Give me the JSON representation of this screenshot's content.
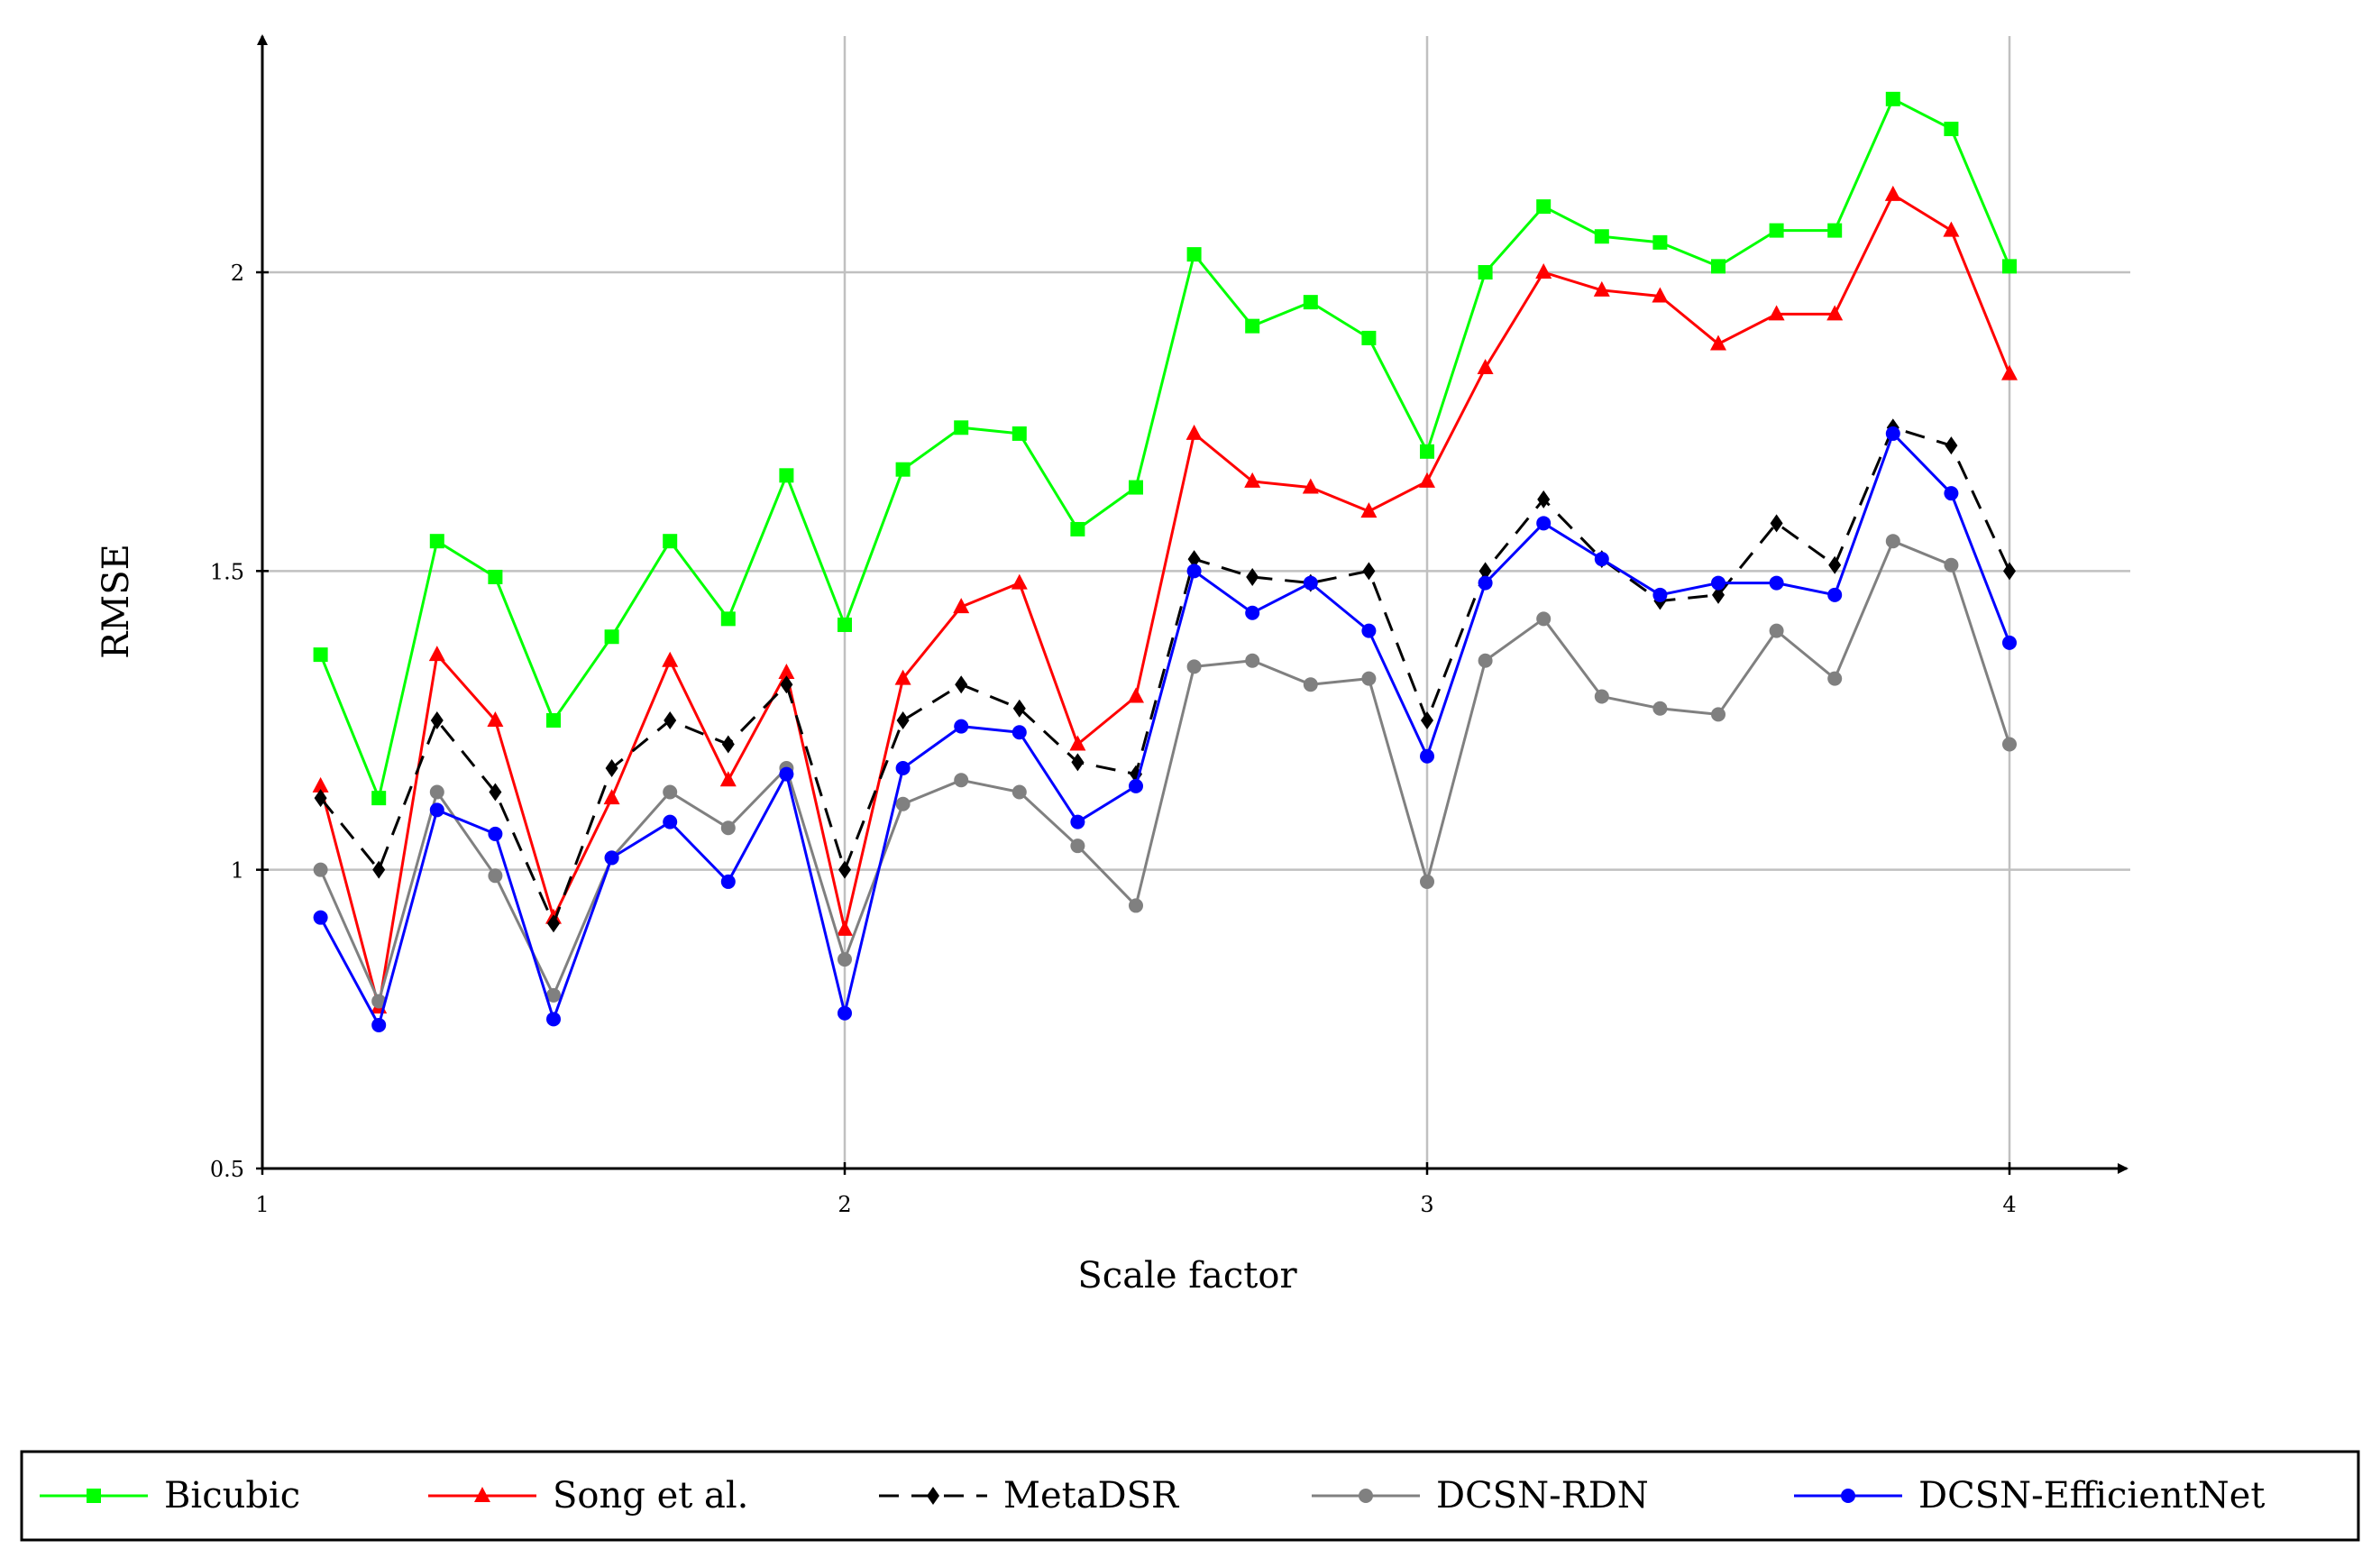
{
  "chart_data": {
    "type": "line",
    "title": "",
    "xlabel": "Scale factor",
    "ylabel": "RMSE",
    "xlim": [
      1,
      4.2
    ],
    "ylim": [
      0.5,
      2.4
    ],
    "xticks": [
      1,
      2,
      3,
      4
    ],
    "yticks": [
      0.5,
      1,
      1.5,
      2
    ],
    "xtick_labels": [
      "1",
      "2",
      "3",
      "4"
    ],
    "ytick_labels": [
      "0.5",
      "1",
      "1.5",
      "2"
    ],
    "grid": true,
    "legend_position": "bottom",
    "x": [
      1.1,
      1.2,
      1.3,
      1.4,
      1.5,
      1.6,
      1.7,
      1.8,
      1.9,
      2.0,
      2.1,
      2.2,
      2.3,
      2.4,
      2.5,
      2.6,
      2.7,
      2.8,
      2.9,
      3.0,
      3.1,
      3.2,
      3.3,
      3.4,
      3.5,
      3.6,
      3.7,
      3.8,
      3.9,
      4.0
    ],
    "series": [
      {
        "name": "Bicubic",
        "color": "#00ff00",
        "marker": "square",
        "dashed": false,
        "values": [
          1.36,
          1.12,
          1.55,
          1.49,
          1.25,
          1.39,
          1.55,
          1.42,
          1.66,
          1.41,
          1.67,
          1.74,
          1.73,
          1.57,
          1.64,
          2.03,
          1.91,
          1.95,
          1.89,
          1.7,
          2.0,
          2.11,
          2.06,
          2.05,
          2.01,
          2.07,
          2.07,
          2.29,
          2.24,
          2.01
        ]
      },
      {
        "name": "Song et al.",
        "color": "#ff0000",
        "marker": "triangle",
        "dashed": false,
        "values": [
          1.14,
          0.77,
          1.36,
          1.25,
          0.92,
          1.12,
          1.35,
          1.15,
          1.33,
          0.9,
          1.32,
          1.44,
          1.48,
          1.21,
          1.29,
          1.73,
          1.65,
          1.64,
          1.6,
          1.65,
          1.84,
          2.0,
          1.97,
          1.96,
          1.88,
          1.93,
          1.93,
          2.13,
          2.07,
          1.83
        ]
      },
      {
        "name": "MetaDSR",
        "color": "#000000",
        "marker": "diamond",
        "dashed": true,
        "values": [
          1.12,
          1.0,
          1.25,
          1.13,
          0.91,
          1.17,
          1.25,
          1.21,
          1.31,
          1.0,
          1.25,
          1.31,
          1.27,
          1.18,
          1.16,
          1.52,
          1.49,
          1.48,
          1.5,
          1.25,
          1.5,
          1.62,
          1.52,
          1.45,
          1.46,
          1.58,
          1.51,
          1.74,
          1.71,
          1.5
        ]
      },
      {
        "name": "DCSN-RDN",
        "color": "#808080",
        "marker": "circle",
        "dashed": false,
        "values": [
          1.0,
          0.78,
          1.13,
          0.99,
          0.79,
          1.02,
          1.13,
          1.07,
          1.17,
          0.85,
          1.11,
          1.15,
          1.13,
          1.04,
          0.94,
          1.34,
          1.35,
          1.31,
          1.32,
          0.98,
          1.35,
          1.42,
          1.29,
          1.27,
          1.26,
          1.4,
          1.32,
          1.55,
          1.51,
          1.21
        ]
      },
      {
        "name": "DCSN-EfficientNet",
        "color": "#0000ff",
        "marker": "circle",
        "dashed": false,
        "values": [
          0.92,
          0.74,
          1.1,
          1.06,
          0.75,
          1.02,
          1.08,
          0.98,
          1.16,
          0.76,
          1.17,
          1.24,
          1.23,
          1.08,
          1.14,
          1.5,
          1.43,
          1.48,
          1.4,
          1.19,
          1.48,
          1.58,
          1.52,
          1.46,
          1.48,
          1.48,
          1.46,
          1.73,
          1.63,
          1.38
        ]
      }
    ]
  }
}
